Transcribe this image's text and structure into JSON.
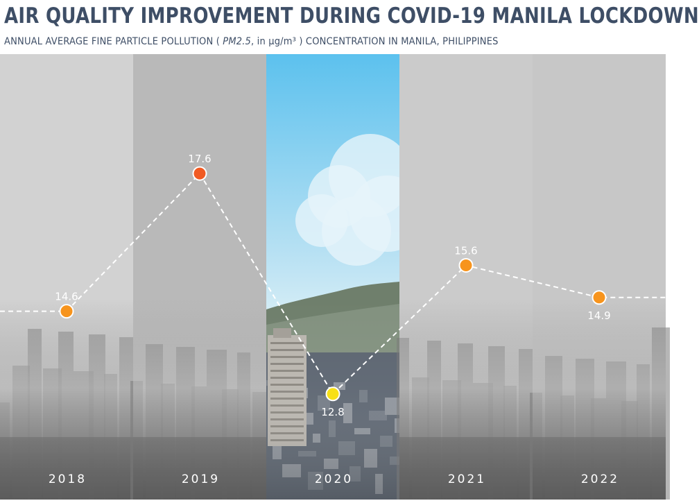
{
  "title": "AIR QUALITY IMPROVEMENT DURING COVID-19 MANILA LOCKDOWN",
  "subtitle": {
    "before": "ANNUAL AVERAGE FINE PARTICLE POLLUTION  ( ",
    "pm": "PM2.5",
    "middle": ", in µg/m³ )  CONCENTRATION IN MANILA, PHILIPPINES"
  },
  "chart_data": {
    "type": "line",
    "title": "AIR QUALITY IMPROVEMENT DURING COVID-19 MANILA LOCKDOWN",
    "xlabel": "",
    "ylabel": "",
    "categories": [
      "2018",
      "2019",
      "2020",
      "2021",
      "2022"
    ],
    "values": [
      14.6,
      17.6,
      12.8,
      15.6,
      14.9
    ],
    "value_labels": [
      "14.6",
      "17.6",
      "12.8",
      "15.6",
      "14.9"
    ],
    "unit": "µg/m³",
    "ylim": [
      10.5,
      20.2
    ],
    "grid": false,
    "legend": "none",
    "line_style": "dashed",
    "colors": {
      "line": "#ffffff",
      "point_outline": "#ffffff",
      "points": [
        "#f7941d",
        "#f15a22",
        "#f7e017",
        "#f7941d",
        "#f7941d"
      ],
      "highlight_panel_sky": "#5cc1ee"
    }
  }
}
